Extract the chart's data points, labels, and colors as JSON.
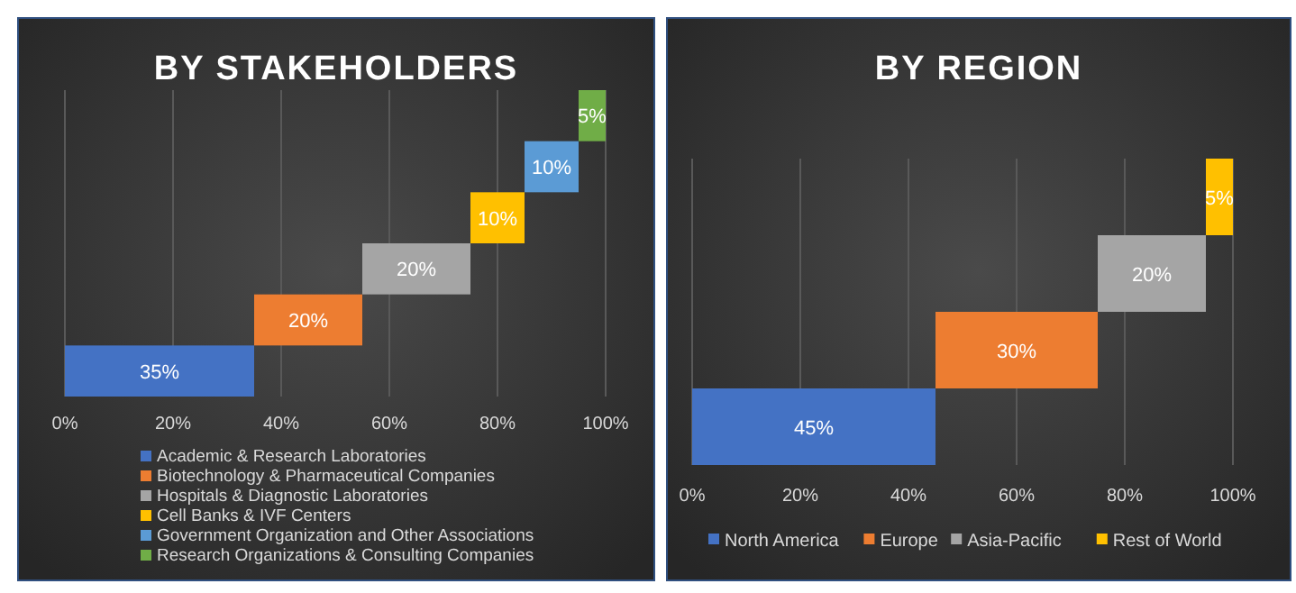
{
  "chart_data": [
    {
      "type": "bar",
      "orientation": "horizontal",
      "title": "BY STAKEHOLDERS",
      "categories": [
        null,
        null,
        null,
        null,
        null,
        null
      ],
      "xlim": [
        0,
        100
      ],
      "xticks": [
        {
          "value": 0,
          "label": "0%"
        },
        {
          "value": 20,
          "label": "20%"
        },
        {
          "value": 40,
          "label": "40%"
        },
        {
          "value": 60,
          "label": "60%"
        },
        {
          "value": 80,
          "label": "80%"
        },
        {
          "value": 100,
          "label": "100%"
        }
      ],
      "grid": "x",
      "legend": "bottom",
      "series": [
        {
          "name": "Academic & Research Laboratories",
          "color": "#4472c4",
          "values": [
            null,
            null,
            null,
            null,
            null,
            35
          ],
          "value_labels": [
            null,
            null,
            null,
            null,
            null,
            "35%"
          ]
        },
        {
          "name": "Biotechnology & Pharmaceutical Companies",
          "color": "#ed7d31",
          "values": [
            null,
            null,
            null,
            null,
            20,
            null
          ],
          "base": [
            null,
            null,
            null,
            null,
            35,
            null
          ],
          "value_labels": [
            null,
            null,
            null,
            null,
            "20%",
            null
          ]
        },
        {
          "name": "Hospitals & Diagnostic Laboratories",
          "color": "#a5a5a5",
          "values": [
            null,
            null,
            null,
            20,
            null,
            null
          ],
          "base": [
            null,
            null,
            null,
            55,
            null,
            null
          ],
          "value_labels": [
            null,
            null,
            null,
            "20%",
            null,
            null
          ]
        },
        {
          "name": "Cell Banks & IVF Centers",
          "color": "#ffc000",
          "values": [
            null,
            null,
            10,
            null,
            null,
            null
          ],
          "base": [
            null,
            null,
            75,
            null,
            null,
            null
          ],
          "value_labels": [
            null,
            null,
            "10%",
            null,
            null,
            null
          ]
        },
        {
          "name": "Government Organization and Other Associations",
          "color": "#5b9bd5",
          "values": [
            null,
            10,
            null,
            null,
            null,
            null
          ],
          "base": [
            null,
            85,
            null,
            null,
            null,
            null
          ],
          "value_labels": [
            null,
            "10%",
            null,
            null,
            null,
            null
          ]
        },
        {
          "name": "Research Organizations & Consulting Companies",
          "color": "#70ad47",
          "values": [
            5,
            null,
            null,
            null,
            null,
            null
          ],
          "base": [
            95,
            null,
            null,
            null,
            null,
            null
          ],
          "value_labels": [
            "5%",
            null,
            null,
            null,
            null,
            null
          ]
        }
      ]
    },
    {
      "type": "bar",
      "orientation": "horizontal",
      "title": "BY REGION",
      "categories": [
        null,
        null,
        null,
        null
      ],
      "xlim": [
        0,
        100
      ],
      "xticks": [
        {
          "value": 0,
          "label": "0%"
        },
        {
          "value": 20,
          "label": "20%"
        },
        {
          "value": 40,
          "label": "40%"
        },
        {
          "value": 60,
          "label": "60%"
        },
        {
          "value": 80,
          "label": "80%"
        },
        {
          "value": 100,
          "label": "100%"
        }
      ],
      "grid": "x",
      "legend": "bottom",
      "series": [
        {
          "name": "North America",
          "color": "#4472c4",
          "values": [
            null,
            null,
            null,
            45
          ],
          "value_labels": [
            null,
            null,
            null,
            "45%"
          ]
        },
        {
          "name": "Europe",
          "color": "#ed7d31",
          "values": [
            null,
            null,
            30,
            null
          ],
          "base": [
            null,
            null,
            45,
            null
          ],
          "value_labels": [
            null,
            null,
            "30%",
            null
          ]
        },
        {
          "name": "Asia-Pacific",
          "color": "#a5a5a5",
          "values": [
            null,
            20,
            null,
            null
          ],
          "base": [
            null,
            75,
            null,
            null
          ],
          "value_labels": [
            null,
            "20%",
            null,
            null
          ]
        },
        {
          "name": "Rest of World",
          "color": "#ffc000",
          "values": [
            5,
            null,
            null,
            null
          ],
          "base": [
            95,
            null,
            null,
            null
          ],
          "value_labels": [
            "5%",
            null,
            null,
            null
          ]
        }
      ]
    }
  ]
}
